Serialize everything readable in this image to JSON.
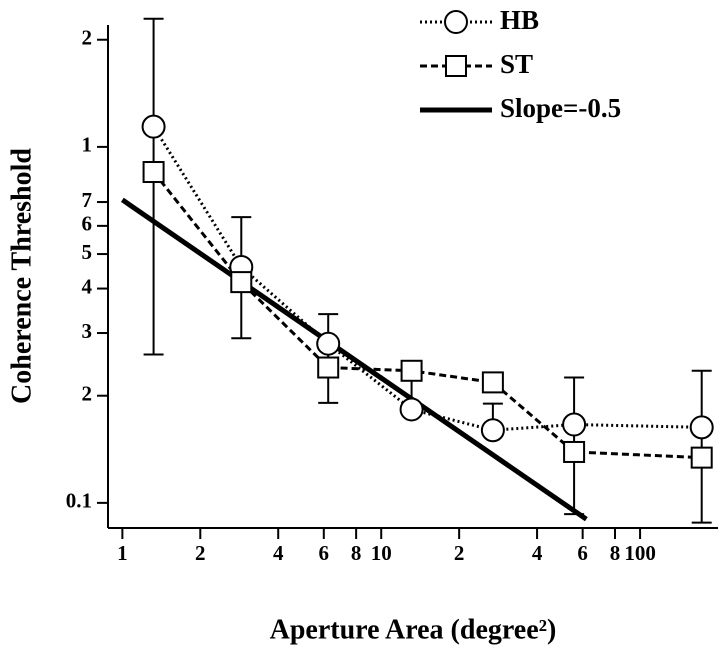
{
  "chart_data": {
    "type": "line",
    "xlabel": "Aperture Area (degree²)",
    "ylabel": "Coherence Threshold",
    "xscale": "log",
    "yscale": "log",
    "xlim": [
      0.88,
      200
    ],
    "ylim": [
      0.085,
      2.2
    ],
    "xticks": [
      1,
      2,
      4,
      6,
      8,
      10,
      {
        "value": 20,
        "label": "2"
      },
      {
        "value": 40,
        "label": "4"
      },
      {
        "value": 60,
        "label": "6"
      },
      {
        "value": 80,
        "label": "8"
      },
      100
    ],
    "yticks": [
      0.1,
      {
        "value": 0.2,
        "label": "2"
      },
      {
        "value": 0.3,
        "label": "3"
      },
      {
        "value": 0.4,
        "label": "4"
      },
      {
        "value": 0.5,
        "label": "5"
      },
      {
        "value": 0.6,
        "label": "6"
      },
      {
        "value": 0.7,
        "label": "7"
      },
      1,
      2
    ],
    "legend": "upper right",
    "series": [
      {
        "name": "HB",
        "color": "#000000",
        "dash": "dotted",
        "marker": "circle",
        "x": [
          1.32,
          2.88,
          6.24,
          13.1,
          27.0,
          55.6,
          173
        ],
        "values": [
          1.14,
          0.46,
          0.28,
          0.183,
          0.16,
          0.166,
          0.163
        ],
        "err_lo": [
          0.261,
          0.29,
          0.191,
          0.18,
          0.155,
          0.093,
          0.088
        ],
        "err_hi": [
          2.29,
          0.635,
          0.339,
          0.24,
          0.19,
          0.225,
          0.235
        ]
      },
      {
        "name": "ST",
        "color": "#000000",
        "dash": "dashed",
        "marker": "square",
        "x": [
          1.32,
          2.88,
          6.24,
          13.1,
          27.0,
          55.6,
          173
        ],
        "values": [
          0.85,
          0.417,
          0.24,
          0.235,
          0.218,
          0.139,
          0.134
        ]
      },
      {
        "name": "Slope=-0.5",
        "color": "#000000",
        "dash": "solid",
        "x": [
          1,
          62
        ],
        "values": [
          0.71,
          0.09
        ]
      }
    ]
  }
}
